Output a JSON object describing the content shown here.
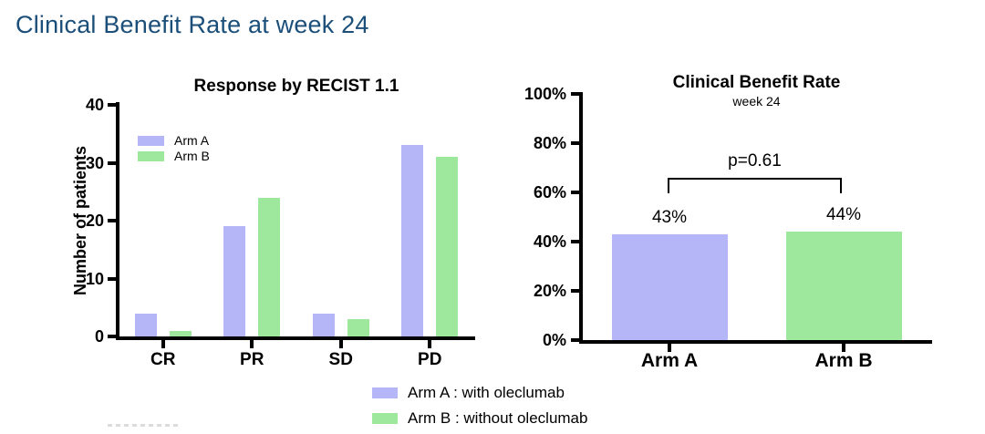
{
  "page": {
    "title": "Clinical Benefit Rate at week 24",
    "title_color": "#1b4e79"
  },
  "colors": {
    "arm_a": "#b4b6f8",
    "arm_b": "#9de89d",
    "axis": "#000000"
  },
  "chart_data": [
    {
      "id": "recist-response",
      "type": "bar",
      "title": "Response by RECIST 1.1",
      "xlabel": "",
      "ylabel": "Number of patients",
      "categories": [
        "CR",
        "PR",
        "SD",
        "PD"
      ],
      "series": [
        {
          "name": "Arm A",
          "color": "#b4b6f8",
          "values": [
            4,
            19,
            4,
            33
          ]
        },
        {
          "name": "Arm B",
          "color": "#9de89d",
          "values": [
            1,
            24,
            3,
            31
          ]
        }
      ],
      "ylim": [
        0,
        40
      ],
      "yticks": [
        0,
        10,
        20,
        30,
        40
      ],
      "grid": false,
      "legend_position": "inside-top-left"
    },
    {
      "id": "clinical-benefit-rate",
      "type": "bar",
      "title": "Clinical Benefit Rate",
      "subtitle": "week 24",
      "xlabel": "",
      "ylabel": "",
      "categories": [
        "Arm A",
        "Arm B"
      ],
      "values": [
        43,
        44
      ],
      "value_labels": [
        "43%",
        "44%"
      ],
      "bar_colors": [
        "#b4b6f8",
        "#9de89d"
      ],
      "ylim": [
        0,
        100
      ],
      "yticks": [
        0,
        20,
        40,
        60,
        80,
        100
      ],
      "ytick_labels": [
        "0%",
        "20%",
        "40%",
        "60%",
        "80%",
        "100%"
      ],
      "grid": false,
      "annotation": {
        "text": "p=0.61",
        "type": "significance-bracket",
        "between": [
          "Arm A",
          "Arm B"
        ]
      }
    }
  ],
  "bottom_legend": {
    "items": [
      {
        "color": "#b4b6f8",
        "label": "Arm A : with oleclumab"
      },
      {
        "color": "#9de89d",
        "label": "Arm B : without oleclumab"
      }
    ]
  }
}
